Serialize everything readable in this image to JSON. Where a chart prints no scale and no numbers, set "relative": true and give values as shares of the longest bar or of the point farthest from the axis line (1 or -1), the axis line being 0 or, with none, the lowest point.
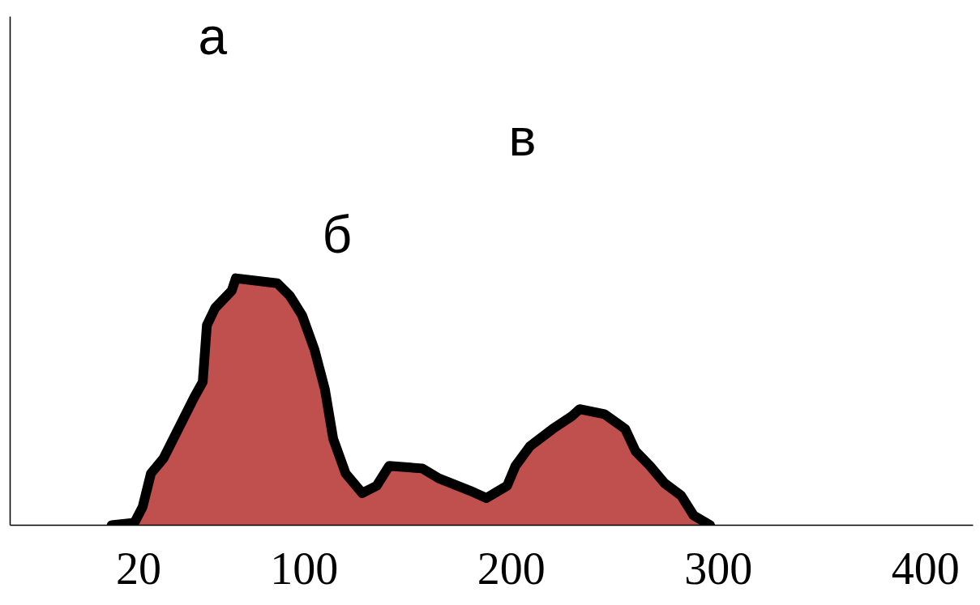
{
  "chart_data": {
    "type": "area",
    "relative": true,
    "color": "#c0504d",
    "x": [
      7,
      18,
      22,
      26,
      32,
      38,
      47,
      51,
      53,
      57,
      65,
      67,
      87,
      93,
      99,
      105,
      110,
      114,
      120,
      128,
      135,
      141,
      157,
      165,
      180,
      188,
      198,
      202,
      209,
      220,
      229,
      233,
      245,
      255,
      260,
      267,
      274,
      282,
      288,
      296
    ],
    "values": [
      0,
      0.01,
      0.075,
      0.21,
      0.27,
      0.37,
      0.52,
      0.58,
      0.81,
      0.88,
      0.95,
      1.0,
      0.98,
      0.93,
      0.85,
      0.71,
      0.55,
      0.35,
      0.21,
      0.13,
      0.16,
      0.24,
      0.23,
      0.19,
      0.14,
      0.11,
      0.16,
      0.24,
      0.32,
      0.39,
      0.44,
      0.47,
      0.45,
      0.39,
      0.3,
      0.24,
      0.17,
      0.12,
      0.04,
      0
    ],
    "xlim": [
      -42,
      423
    ],
    "xticks": [
      20,
      100,
      200,
      300,
      400
    ],
    "grid": false,
    "annotations": [
      "а",
      "б",
      "в"
    ]
  }
}
